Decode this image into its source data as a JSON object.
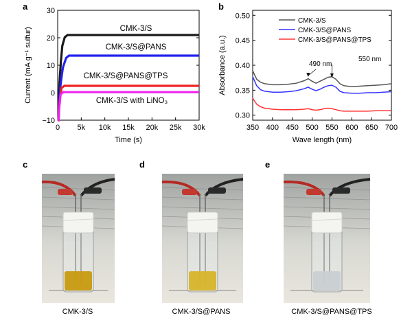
{
  "panel_letters": [
    "a",
    "b",
    "c",
    "d",
    "e"
  ],
  "chart_data": [
    {
      "type": "line",
      "panel": "a",
      "xlabel": "Time (s)",
      "ylabel": "Current (mA g⁻¹ sulfur)",
      "xlim": [
        0,
        30000
      ],
      "ylim": [
        -10,
        30
      ],
      "x_ticks": [
        0,
        5000,
        10000,
        15000,
        20000,
        25000,
        30000
      ],
      "x_tick_labels": [
        "0",
        "5k",
        "10k",
        "15k",
        "20k",
        "25k",
        "30k"
      ],
      "y_ticks": [
        -10,
        0,
        10,
        20,
        30
      ],
      "y_tick_labels": [
        "−10",
        "0",
        "10",
        "20",
        "30"
      ],
      "series": [
        {
          "name": "CMK-3/S",
          "color": "#1a1a1a",
          "plateau": 21,
          "rise_start": 200,
          "rise_end": 1500
        },
        {
          "name": "CMK-3/S@PANS",
          "color": "#2222ee",
          "plateau": 13.5,
          "rise_start": 200,
          "rise_end": 1800
        },
        {
          "name": "CMK-3/S@PANS@TPS",
          "color": "#ee2222",
          "plateau": 2.5,
          "rise_start": 200,
          "rise_end": 800
        },
        {
          "name": "CMK-3/S with LiNO₃",
          "color": "#ee22ee",
          "plateau": 0.2,
          "rise_start": 200,
          "rise_end": 600
        }
      ]
    },
    {
      "type": "line",
      "panel": "b",
      "xlabel": "Wave length (nm)",
      "ylabel": "Absorbance (a.u.)",
      "xlim": [
        350,
        700
      ],
      "ylim": [
        0.29,
        0.51
      ],
      "x_ticks": [
        350,
        400,
        450,
        500,
        550,
        600,
        650,
        700
      ],
      "y_ticks": [
        0.3,
        0.35,
        0.4,
        0.45,
        0.5
      ],
      "y_tick_labels": [
        "0.30",
        "0.35",
        "0.40",
        "0.45",
        "0.50"
      ],
      "legend_position": "top-right",
      "annotations": [
        "490 nm",
        "550 nm"
      ],
      "series": [
        {
          "name": "CMK-3/S",
          "color": "#555555",
          "x": [
            350,
            360,
            370,
            380,
            400,
            420,
            440,
            460,
            480,
            490,
            500,
            510,
            520,
            530,
            540,
            550,
            560,
            570,
            580,
            600,
            620,
            640,
            660,
            680,
            700
          ],
          "y": [
            0.389,
            0.372,
            0.366,
            0.363,
            0.361,
            0.361,
            0.362,
            0.364,
            0.369,
            0.373,
            0.368,
            0.364,
            0.368,
            0.372,
            0.376,
            0.377,
            0.372,
            0.363,
            0.359,
            0.357,
            0.358,
            0.359,
            0.36,
            0.361,
            0.363
          ]
        },
        {
          "name": "CMK-3/S@PANS",
          "color": "#3333ff",
          "x": [
            350,
            360,
            370,
            380,
            400,
            420,
            440,
            460,
            480,
            490,
            500,
            510,
            520,
            530,
            540,
            550,
            560,
            570,
            580,
            600,
            620,
            640,
            660,
            680,
            700
          ],
          "y": [
            0.377,
            0.359,
            0.351,
            0.348,
            0.346,
            0.346,
            0.347,
            0.349,
            0.353,
            0.356,
            0.352,
            0.349,
            0.352,
            0.356,
            0.359,
            0.36,
            0.356,
            0.348,
            0.345,
            0.344,
            0.344,
            0.345,
            0.345,
            0.346,
            0.347
          ]
        },
        {
          "name": "CMK-3/S@PANS@TPS",
          "color": "#ff3333",
          "x": [
            350,
            360,
            370,
            380,
            400,
            420,
            440,
            460,
            480,
            490,
            500,
            510,
            520,
            530,
            540,
            550,
            560,
            570,
            580,
            600,
            620,
            640,
            660,
            680,
            700
          ],
          "y": [
            0.334,
            0.322,
            0.317,
            0.314,
            0.312,
            0.311,
            0.311,
            0.311,
            0.312,
            0.313,
            0.311,
            0.31,
            0.311,
            0.313,
            0.314,
            0.313,
            0.311,
            0.309,
            0.308,
            0.308,
            0.308,
            0.308,
            0.309,
            0.309,
            0.309
          ]
        }
      ]
    }
  ],
  "photos": [
    {
      "letter": "c",
      "caption": "CMK-3/S",
      "liquid_color": "#c79a10"
    },
    {
      "letter": "d",
      "caption": "CMK-3/S@PANS",
      "liquid_color": "#d6b42a"
    },
    {
      "letter": "e",
      "caption": "CMK-3/S@PANS@TPS",
      "liquid_color": "#c9cfd2"
    }
  ]
}
